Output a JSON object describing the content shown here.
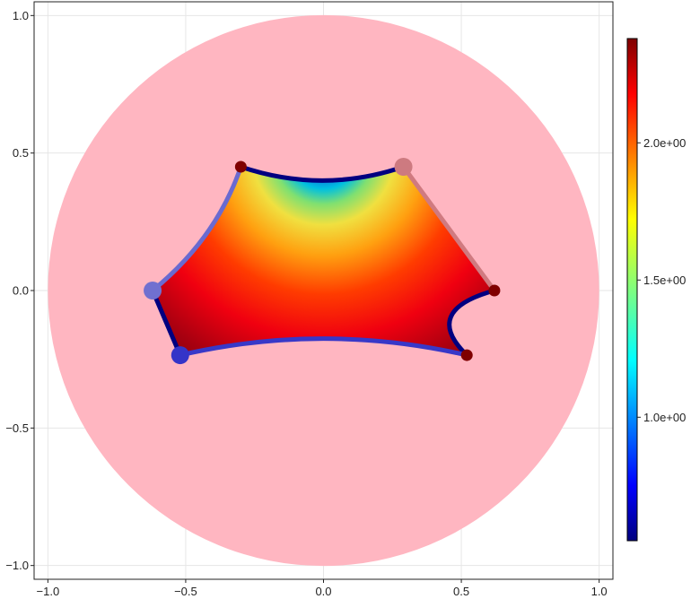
{
  "chart_data": {
    "type": "heatmap",
    "title": "",
    "xlabel": "",
    "ylabel": "",
    "xlim": [
      -1.05,
      1.05
    ],
    "ylim": [
      -1.05,
      1.05
    ],
    "grid": true,
    "x_ticks": [
      -1.0,
      -0.5,
      0.0,
      0.5,
      1.0
    ],
    "x_tick_labels": [
      "−1.0",
      "−0.5",
      "0.0",
      "0.5",
      "1.0"
    ],
    "y_ticks": [
      -1.0,
      -0.5,
      0.0,
      0.5,
      1.0
    ],
    "y_tick_labels": [
      "−1.0",
      "−0.5",
      "0.0",
      "0.5",
      "1.0"
    ],
    "disk": {
      "center": [
        0,
        0
      ],
      "radius": 1.0,
      "color": "#ffb6c1"
    },
    "polygon_vertices": [
      {
        "x": 0.29,
        "y": 0.45
      },
      {
        "x": 0.62,
        "y": 0.0
      },
      {
        "x": 0.52,
        "y": -0.235
      },
      {
        "x": -0.52,
        "y": -0.235
      },
      {
        "x": -0.62,
        "y": 0.0
      },
      {
        "x": -0.3,
        "y": 0.45
      }
    ],
    "edge_sag": [
      0.0,
      0.11,
      0.06,
      0.0,
      0.04,
      0.05
    ],
    "edge_colors": [
      "#d07a80",
      "#000080",
      "#3838c8",
      "#000080",
      "#6a6ad0",
      "#000080"
    ],
    "markers": [
      {
        "x": 0.29,
        "y": 0.45,
        "color": "#cd7a80",
        "size": "large"
      },
      {
        "x": 0.62,
        "y": 0.0,
        "color": "#7f0000",
        "size": "small"
      },
      {
        "x": 0.52,
        "y": -0.235,
        "color": "#7f0000",
        "size": "small"
      },
      {
        "x": -0.52,
        "y": -0.235,
        "color": "#3434c8",
        "size": "large"
      },
      {
        "x": -0.62,
        "y": 0.0,
        "color": "#7070d0",
        "size": "large"
      },
      {
        "x": -0.3,
        "y": 0.45,
        "color": "#7f0000",
        "size": "small"
      }
    ],
    "colorbar": {
      "colormap": "jet",
      "range": [
        0.55,
        2.38
      ],
      "ticks": [
        1.0,
        1.5,
        2.0
      ],
      "tick_labels": [
        "1.0e+00",
        "1.5e+00",
        "2.0e+00"
      ],
      "placement": "right"
    }
  }
}
